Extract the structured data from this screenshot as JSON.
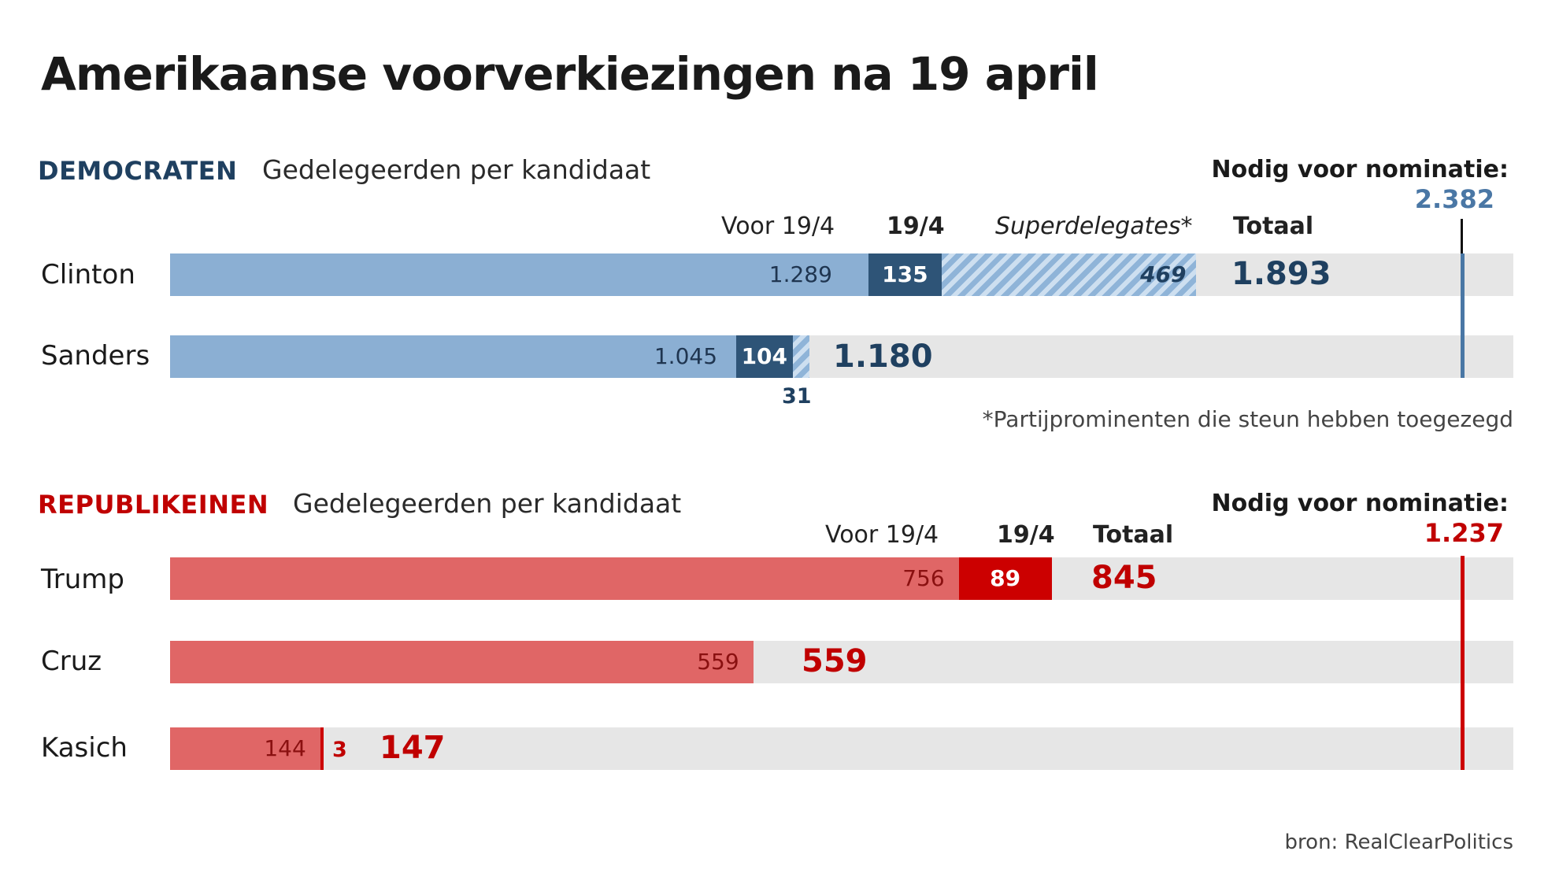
{
  "title": "Amerikaanse voorverkiezingen na 19 april",
  "source": "bron: RealClearPolitics",
  "colors": {
    "dem_before": "#8bafd3",
    "dem_day": "#2e5477",
    "dem_text": "#1f4060",
    "dem_line": "#4a77a5",
    "rep_before": "#e06666",
    "rep_day": "#cc0000",
    "rep_text": "#c00000",
    "track": "#e6e6e6"
  },
  "democrats": {
    "party": "DEMOCRATEN",
    "subtitle": "Gedelegeerden per kandidaat",
    "needed_label": "Nodig voor nominatie:",
    "needed_value": "2.382",
    "col_before": "Voor 19/4",
    "col_day": "19/4",
    "col_super": "Superdelegates*",
    "col_total": "Totaal",
    "footnote": "*Partijprominenten die steun hebben toegezegd",
    "candidates": [
      {
        "name": "Clinton",
        "before": "1.289",
        "day": "135",
        "super": "469",
        "total": "1.893"
      },
      {
        "name": "Sanders",
        "before": "1.045",
        "day": "104",
        "super": "31",
        "total": "1.180"
      }
    ]
  },
  "republicans": {
    "party": "REPUBLIKEINEN",
    "subtitle": "Gedelegeerden per kandidaat",
    "needed_label": "Nodig voor nominatie:",
    "needed_value": "1.237",
    "col_before": "Voor 19/4",
    "col_day": "19/4",
    "col_total": "Totaal",
    "candidates": [
      {
        "name": "Trump",
        "before": "756",
        "day": "89",
        "total": "845"
      },
      {
        "name": "Cruz",
        "before": "559",
        "total": "559"
      },
      {
        "name": "Kasich",
        "before": "144",
        "day": "3",
        "total": "147"
      }
    ]
  },
  "chart_data": [
    {
      "type": "bar",
      "title": "DEMOCRATEN",
      "subtitle": "Gedelegeerden per kandidaat",
      "categories": [
        "Clinton",
        "Sanders"
      ],
      "stacked": true,
      "series": [
        {
          "name": "Voor 19/4",
          "values": [
            1289,
            1045
          ]
        },
        {
          "name": "19/4",
          "values": [
            135,
            104
          ]
        },
        {
          "name": "Superdelegates*",
          "values": [
            469,
            31
          ]
        }
      ],
      "totals": [
        1893,
        1180
      ],
      "threshold": 2382,
      "xlim": [
        0,
        2382
      ]
    },
    {
      "type": "bar",
      "title": "REPUBLIKEINEN",
      "subtitle": "Gedelegeerden per kandidaat",
      "categories": [
        "Trump",
        "Cruz",
        "Kasich"
      ],
      "stacked": true,
      "series": [
        {
          "name": "Voor 19/4",
          "values": [
            756,
            559,
            144
          ]
        },
        {
          "name": "19/4",
          "values": [
            89,
            0,
            3
          ]
        }
      ],
      "totals": [
        845,
        559,
        147
      ],
      "threshold": 1237,
      "xlim": [
        0,
        1237
      ]
    }
  ]
}
